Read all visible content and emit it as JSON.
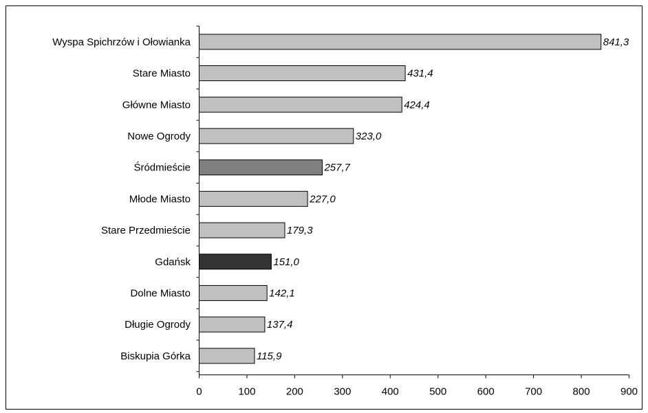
{
  "colors": {
    "default_bar": "#c0c0c0",
    "highlight_srodmiescie": "#808080",
    "highlight_gdansk": "#333333",
    "bar_stroke": "#000000",
    "frame": "#000000"
  },
  "chart_data": {
    "type": "bar",
    "orientation": "horizontal",
    "title": "",
    "xlabel": "",
    "ylabel": "",
    "xlim": [
      0,
      900
    ],
    "x_ticks": [
      0,
      100,
      200,
      300,
      400,
      500,
      600,
      700,
      800,
      900
    ],
    "grid": false,
    "legend": "none",
    "categories": [
      "Wyspa Spichrzów i Ołowianka",
      "Stare Miasto",
      "Główne Miasto",
      "Nowe Ogrody",
      "Śródmieście",
      "Młode Miasto",
      "Stare Przedmieście",
      "Gdańsk",
      "Dolne Miasto",
      "Długie Ogrody",
      "Biskupia Górka"
    ],
    "values": [
      841.3,
      431.4,
      424.4,
      323.0,
      257.7,
      227.0,
      179.3,
      151.0,
      142.1,
      137.4,
      115.9
    ],
    "value_labels": [
      "841,3",
      "431,4",
      "424,4",
      "323,0",
      "257,7",
      "227,0",
      "179,3",
      "151,0",
      "142,1",
      "137,4",
      "115,9"
    ],
    "bar_colors": [
      "#c0c0c0",
      "#c0c0c0",
      "#c0c0c0",
      "#c0c0c0",
      "#808080",
      "#c0c0c0",
      "#c0c0c0",
      "#333333",
      "#c0c0c0",
      "#c0c0c0",
      "#c0c0c0"
    ]
  }
}
